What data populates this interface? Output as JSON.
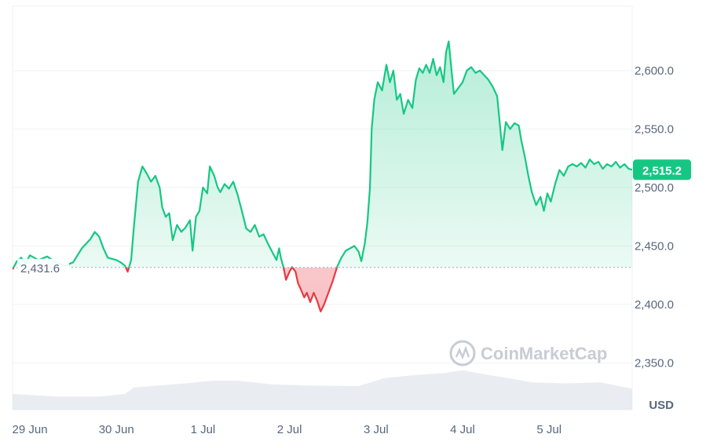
{
  "chart_data": {
    "type": "area",
    "unit": "USD",
    "baseline": 2431.6,
    "baseline_label": "2,431.6",
    "last_value": 2515.2,
    "last_value_label": "2,515.2",
    "ylim": [
      2310,
      2655
    ],
    "y_ticks": [
      {
        "value": 2350,
        "label": "2,350.0"
      },
      {
        "value": 2400,
        "label": "2,400.0"
      },
      {
        "value": 2450,
        "label": "2,450.0"
      },
      {
        "value": 2500,
        "label": "2,500.0"
      },
      {
        "value": 2550,
        "label": "2,550.0"
      },
      {
        "value": 2600,
        "label": "2,600.0"
      }
    ],
    "xlim": [
      0,
      7.16
    ],
    "x_ticks": [
      {
        "value": 0.2,
        "label": "29 Jun"
      },
      {
        "value": 1.2,
        "label": "30 Jun"
      },
      {
        "value": 2.2,
        "label": "1 Jul"
      },
      {
        "value": 3.2,
        "label": "2 Jul"
      },
      {
        "value": 4.2,
        "label": "3 Jul"
      },
      {
        "value": 5.2,
        "label": "4 Jul"
      },
      {
        "value": 6.2,
        "label": "5 Jul"
      }
    ],
    "series": [
      {
        "values": [
          [
            0.0,
            2430
          ],
          [
            0.05,
            2437
          ],
          [
            0.1,
            2440
          ],
          [
            0.15,
            2435
          ],
          [
            0.2,
            2442
          ],
          [
            0.3,
            2438
          ],
          [
            0.4,
            2441
          ],
          [
            0.5,
            2436
          ],
          [
            0.6,
            2433
          ],
          [
            0.7,
            2436
          ],
          [
            0.8,
            2448
          ],
          [
            0.9,
            2456
          ],
          [
            0.95,
            2462
          ],
          [
            1.0,
            2458
          ],
          [
            1.05,
            2448
          ],
          [
            1.1,
            2440
          ],
          [
            1.2,
            2438
          ],
          [
            1.25,
            2436
          ],
          [
            1.3,
            2433
          ],
          [
            1.33,
            2428
          ],
          [
            1.37,
            2438
          ],
          [
            1.4,
            2465
          ],
          [
            1.45,
            2505
          ],
          [
            1.5,
            2518
          ],
          [
            1.55,
            2512
          ],
          [
            1.6,
            2505
          ],
          [
            1.65,
            2510
          ],
          [
            1.7,
            2500
          ],
          [
            1.73,
            2483
          ],
          [
            1.77,
            2475
          ],
          [
            1.81,
            2478
          ],
          [
            1.85,
            2455
          ],
          [
            1.9,
            2468
          ],
          [
            1.95,
            2462
          ],
          [
            2.0,
            2466
          ],
          [
            2.05,
            2472
          ],
          [
            2.08,
            2446
          ],
          [
            2.12,
            2475
          ],
          [
            2.16,
            2480
          ],
          [
            2.2,
            2500
          ],
          [
            2.25,
            2495
          ],
          [
            2.28,
            2518
          ],
          [
            2.33,
            2510
          ],
          [
            2.37,
            2500
          ],
          [
            2.4,
            2496
          ],
          [
            2.45,
            2503
          ],
          [
            2.5,
            2499
          ],
          [
            2.55,
            2505
          ],
          [
            2.6,
            2494
          ],
          [
            2.65,
            2480
          ],
          [
            2.7,
            2465
          ],
          [
            2.75,
            2462
          ],
          [
            2.8,
            2468
          ],
          [
            2.85,
            2458
          ],
          [
            2.9,
            2460
          ],
          [
            2.95,
            2452
          ],
          [
            3.0,
            2445
          ],
          [
            3.05,
            2438
          ],
          [
            3.08,
            2448
          ],
          [
            3.1,
            2440
          ],
          [
            3.13,
            2432
          ],
          [
            3.16,
            2421
          ],
          [
            3.2,
            2428
          ],
          [
            3.23,
            2432
          ],
          [
            3.27,
            2428
          ],
          [
            3.3,
            2418
          ],
          [
            3.33,
            2413
          ],
          [
            3.37,
            2406
          ],
          [
            3.4,
            2410
          ],
          [
            3.44,
            2402
          ],
          [
            3.48,
            2410
          ],
          [
            3.52,
            2403
          ],
          [
            3.56,
            2394
          ],
          [
            3.6,
            2400
          ],
          [
            3.65,
            2410
          ],
          [
            3.7,
            2420
          ],
          [
            3.75,
            2432
          ],
          [
            3.8,
            2440
          ],
          [
            3.85,
            2446
          ],
          [
            3.9,
            2448
          ],
          [
            3.95,
            2450
          ],
          [
            4.0,
            2445
          ],
          [
            4.03,
            2437
          ],
          [
            4.07,
            2452
          ],
          [
            4.1,
            2470
          ],
          [
            4.13,
            2500
          ],
          [
            4.15,
            2550
          ],
          [
            4.18,
            2575
          ],
          [
            4.22,
            2590
          ],
          [
            4.27,
            2583
          ],
          [
            4.32,
            2605
          ],
          [
            4.36,
            2590
          ],
          [
            4.4,
            2600
          ],
          [
            4.44,
            2575
          ],
          [
            4.48,
            2580
          ],
          [
            4.52,
            2563
          ],
          [
            4.57,
            2575
          ],
          [
            4.62,
            2568
          ],
          [
            4.66,
            2592
          ],
          [
            4.7,
            2602
          ],
          [
            4.74,
            2598
          ],
          [
            4.78,
            2605
          ],
          [
            4.82,
            2598
          ],
          [
            4.86,
            2610
          ],
          [
            4.9,
            2596
          ],
          [
            4.94,
            2603
          ],
          [
            4.98,
            2590
          ],
          [
            5.01,
            2616
          ],
          [
            5.04,
            2625
          ],
          [
            5.07,
            2602
          ],
          [
            5.1,
            2580
          ],
          [
            5.15,
            2585
          ],
          [
            5.2,
            2590
          ],
          [
            5.25,
            2600
          ],
          [
            5.3,
            2603
          ],
          [
            5.35,
            2598
          ],
          [
            5.4,
            2600
          ],
          [
            5.45,
            2596
          ],
          [
            5.5,
            2592
          ],
          [
            5.55,
            2586
          ],
          [
            5.6,
            2578
          ],
          [
            5.63,
            2555
          ],
          [
            5.66,
            2532
          ],
          [
            5.7,
            2556
          ],
          [
            5.75,
            2550
          ],
          [
            5.8,
            2555
          ],
          [
            5.85,
            2553
          ],
          [
            5.88,
            2540
          ],
          [
            5.92,
            2526
          ],
          [
            5.96,
            2510
          ],
          [
            6.0,
            2496
          ],
          [
            6.05,
            2485
          ],
          [
            6.1,
            2492
          ],
          [
            6.14,
            2480
          ],
          [
            6.18,
            2495
          ],
          [
            6.22,
            2488
          ],
          [
            6.27,
            2503
          ],
          [
            6.32,
            2515
          ],
          [
            6.37,
            2510
          ],
          [
            6.42,
            2518
          ],
          [
            6.47,
            2520
          ],
          [
            6.52,
            2518
          ],
          [
            6.57,
            2521
          ],
          [
            6.62,
            2517
          ],
          [
            6.67,
            2524
          ],
          [
            6.72,
            2520
          ],
          [
            6.77,
            2522
          ],
          [
            6.82,
            2516
          ],
          [
            6.87,
            2520
          ],
          [
            6.92,
            2518
          ],
          [
            6.97,
            2522
          ],
          [
            7.02,
            2517
          ],
          [
            7.07,
            2520
          ],
          [
            7.12,
            2516
          ],
          [
            7.16,
            2515.2
          ]
        ]
      }
    ],
    "volume": {
      "values": [
        [
          0.0,
          0.3
        ],
        [
          0.5,
          0.25
        ],
        [
          1.0,
          0.25
        ],
        [
          1.3,
          0.3
        ],
        [
          1.4,
          0.42
        ],
        [
          1.6,
          0.45
        ],
        [
          2.0,
          0.5
        ],
        [
          2.3,
          0.55
        ],
        [
          2.6,
          0.55
        ],
        [
          3.0,
          0.48
        ],
        [
          3.4,
          0.46
        ],
        [
          4.0,
          0.45
        ],
        [
          4.3,
          0.6
        ],
        [
          4.6,
          0.65
        ],
        [
          5.0,
          0.7
        ],
        [
          5.2,
          0.75
        ],
        [
          5.5,
          0.66
        ],
        [
          5.8,
          0.58
        ],
        [
          6.0,
          0.52
        ],
        [
          6.4,
          0.5
        ],
        [
          6.8,
          0.52
        ],
        [
          7.16,
          0.4
        ]
      ]
    },
    "watermark": "CoinMarketCap",
    "colors": {
      "up": "#16c784",
      "down": "#ea3943",
      "up_fill": "#16c784",
      "down_fill": "#ea3943",
      "grid": "#eff2f5",
      "axis_text": "#58667e",
      "baseline": "#a6b0c3",
      "volume": "#e2e6ec",
      "watermark": "#c8ccd4"
    }
  }
}
